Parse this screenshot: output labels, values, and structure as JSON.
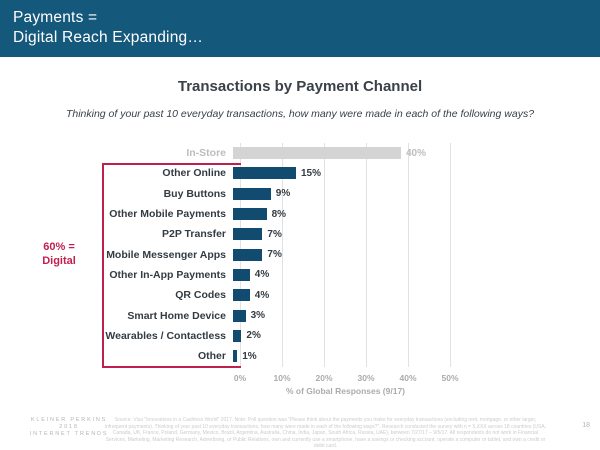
{
  "header": {
    "line1": "Payments =",
    "line2": "Digital Reach Expanding…"
  },
  "chart": {
    "title": "Transactions by Payment Channel",
    "subtitle": "Thinking of your past 10 everyday transactions, how many were made in each of the following ways?",
    "annotation_line1": "60% =",
    "annotation_line2": "Digital",
    "xlabel": "% of Global Responses (9/17)"
  },
  "chart_data": {
    "type": "bar",
    "orientation": "horizontal",
    "title": "Transactions by Payment Channel",
    "categories": [
      "In-Store",
      "Other Online",
      "Buy Buttons",
      "Other Mobile Payments",
      "P2P Transfer",
      "Mobile Messenger Apps",
      "Other In-App Payments",
      "QR Codes",
      "Smart Home Device",
      "Wearables / Contactless",
      "Other"
    ],
    "values": [
      40,
      15,
      9,
      8,
      7,
      7,
      4,
      4,
      3,
      2,
      1
    ],
    "value_labels": [
      "40%",
      "15%",
      "9%",
      "8%",
      "7%",
      "7%",
      "4%",
      "4%",
      "3%",
      "2%",
      "1%"
    ],
    "muted_category": "In-Store",
    "annotation": "60% = Digital",
    "xlabel": "% of Global Responses (9/17)",
    "xlim": [
      0,
      50
    ],
    "xticks": [
      "0%",
      "10%",
      "20%",
      "30%",
      "40%",
      "50%"
    ],
    "grid": "vertical",
    "legend": "none"
  },
  "footer": {
    "logo_line1": "KLEINER PERKINS",
    "logo_line2": "2018",
    "logo_line3": "INTERNET TRENDS",
    "page_number": "18",
    "footnote": "Source: Visa \"Innovations in a Cashless World\" 2017. Note: Poll question was \"Please think about the payments you make for everyday transactions (excluding rent, mortgage, or other larger, infrequent payments). Thinking of your past 10 everyday transactions, how many were made in each of the following ways?\". Research conducted the survey with n = 5,XXX across 18 countries (USA, Canada, UK, France, Poland, Germany, Mexico, Brazil, Argentina, Australia, China, India, Japan, South Africa, Russia, UAE), between 7/27/17 – 9/5/17. All respondents do not work in Financial Services, Marketing, Marketing Research, Advertising, or Public Relations, own and currently use a smartphone, have a savings or checking account, operate a computer or tablet, and own a credit or debit card."
  },
  "colors": {
    "header_bg": "#14587C",
    "bar_blue": "#114B70",
    "bar_gray": "#D4D4D4",
    "accent_red": "#C02050",
    "text_dark": "#333B42",
    "muted_text": "#BDBDBD"
  }
}
